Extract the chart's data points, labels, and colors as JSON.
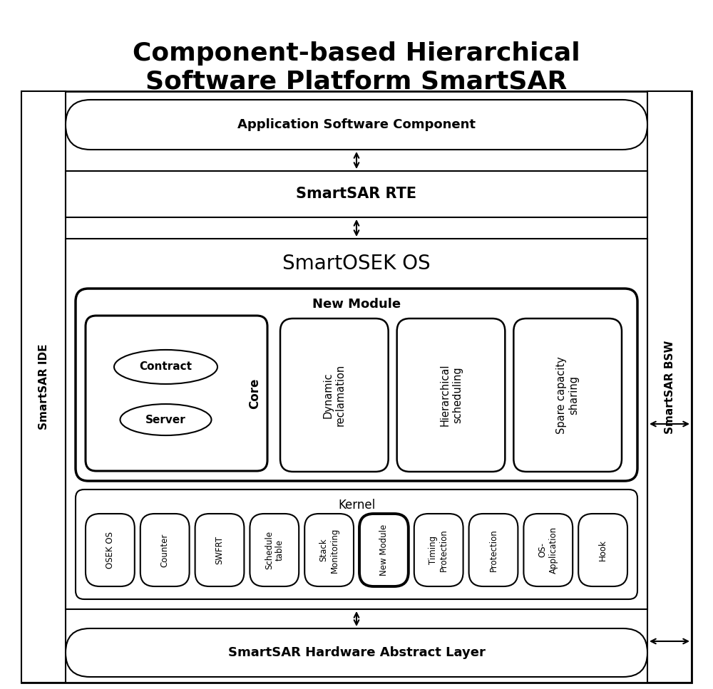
{
  "title": "Component-based Hierarchical\nSoftware Platform SmartSAR",
  "title_fontsize": 26,
  "bg_color": "#ffffff",
  "text_color": "#000000",
  "fig_width": 10.0,
  "fig_height": 9.67,
  "layers": {
    "app": {
      "label": "Application Software Component",
      "fontsize": 13,
      "bold": true
    },
    "rte": {
      "label": "SmartSAR RTE",
      "fontsize": 15,
      "bold": true
    },
    "os": {
      "label": "SmartOSEK OS",
      "fontsize": 20,
      "bold": false
    },
    "new_module_title": {
      "label": "New Module",
      "fontsize": 13,
      "bold": true
    },
    "kernel": {
      "label": "Kernel",
      "fontsize": 12,
      "bold": false
    },
    "hal": {
      "label": "SmartSAR Hardware Abstract Layer",
      "fontsize": 13,
      "bold": true
    }
  },
  "new_module_items": [
    {
      "label": "Dynamic\nreclamation"
    },
    {
      "label": "Hierarchical\nscheduling"
    },
    {
      "label": "Spare capacity\nsharing"
    }
  ],
  "core_label": "Core",
  "contract_label": "Contract",
  "server_label": "Server",
  "kernel_items": [
    {
      "label": "OSEK OS",
      "thick": false
    },
    {
      "label": "Counter",
      "thick": false
    },
    {
      "label": "SWFRT",
      "thick": false
    },
    {
      "label": "Schedule\ntable",
      "thick": false
    },
    {
      "label": "Stack\nMonitoring",
      "thick": false
    },
    {
      "label": "New Module",
      "thick": true
    },
    {
      "label": "Timing\nProtection",
      "thick": false
    },
    {
      "label": "Protection",
      "thick": false
    },
    {
      "label": "OS-\nApplication",
      "thick": false
    },
    {
      "label": "Hook",
      "thick": false
    }
  ],
  "side_left": "SmartSAR IDE",
  "side_right": "SmartSAR BSW"
}
